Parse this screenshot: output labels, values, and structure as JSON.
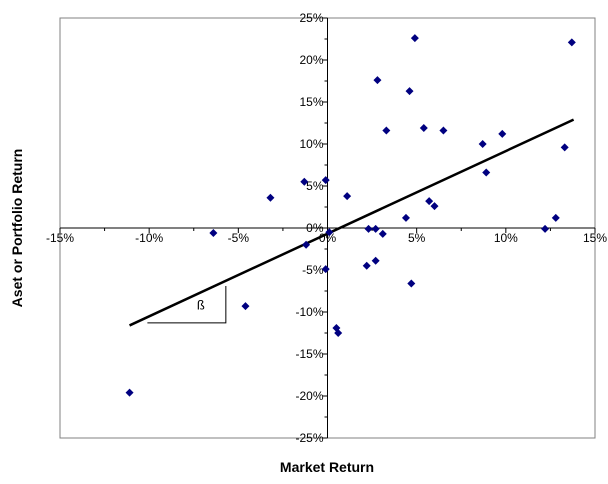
{
  "chart_data": {
    "type": "scatter",
    "xlabel": "Market Return",
    "ylabel": "Aset or Portfolio Return",
    "xlim": [
      -0.15,
      0.15
    ],
    "ylim": [
      -0.25,
      0.25
    ],
    "x_ticks": [
      "-15%",
      "-10%",
      "-5%",
      "0%",
      "5%",
      "10%",
      "15%"
    ],
    "x_tick_values": [
      -0.15,
      -0.1,
      -0.05,
      0,
      0.05,
      0.1,
      0.15
    ],
    "y_ticks": [
      "25%",
      "20%",
      "15%",
      "10%",
      "5%",
      "0%",
      "-5%",
      "-10%",
      "-15%",
      "-20%",
      "-25%"
    ],
    "y_tick_values": [
      0.25,
      0.2,
      0.15,
      0.1,
      0.05,
      0,
      -0.05,
      -0.1,
      -0.15,
      -0.2,
      -0.25
    ],
    "grid": false,
    "marker_color": "#000080",
    "line_color": "#000000",
    "points": [
      {
        "x": 0.049,
        "y": 0.226
      },
      {
        "x": 0.137,
        "y": 0.221
      },
      {
        "x": 0.028,
        "y": 0.176
      },
      {
        "x": 0.046,
        "y": 0.163
      },
      {
        "x": 0.033,
        "y": 0.116
      },
      {
        "x": 0.054,
        "y": 0.119
      },
      {
        "x": 0.065,
        "y": 0.116
      },
      {
        "x": 0.098,
        "y": 0.112
      },
      {
        "x": 0.087,
        "y": 0.1
      },
      {
        "x": 0.133,
        "y": 0.096
      },
      {
        "x": 0.089,
        "y": 0.066
      },
      {
        "x": -0.001,
        "y": 0.057
      },
      {
        "x": -0.013,
        "y": 0.055
      },
      {
        "x": 0.011,
        "y": 0.038
      },
      {
        "x": -0.032,
        "y": 0.036
      },
      {
        "x": 0.057,
        "y": 0.032
      },
      {
        "x": 0.06,
        "y": 0.026
      },
      {
        "x": 0.044,
        "y": 0.012
      },
      {
        "x": 0.128,
        "y": 0.012
      },
      {
        "x": 0.023,
        "y": -0.001
      },
      {
        "x": 0.027,
        "y": -0.001
      },
      {
        "x": 0.122,
        "y": -0.001
      },
      {
        "x": 0.001,
        "y": -0.005
      },
      {
        "x": -0.064,
        "y": -0.006
      },
      {
        "x": 0.031,
        "y": -0.007
      },
      {
        "x": -0.012,
        "y": -0.02
      },
      {
        "x": 0.027,
        "y": -0.039
      },
      {
        "x": 0.022,
        "y": -0.045
      },
      {
        "x": -0.001,
        "y": -0.049
      },
      {
        "x": 0.047,
        "y": -0.066
      },
      {
        "x": -0.046,
        "y": -0.093
      },
      {
        "x": 0.005,
        "y": -0.119
      },
      {
        "x": 0.006,
        "y": -0.125
      },
      {
        "x": -0.111,
        "y": -0.196
      }
    ],
    "regression_line": {
      "x": [
        -0.111,
        0.138
      ],
      "y": [
        -0.116,
        0.129
      ]
    },
    "beta_triangle": {
      "label": "ß",
      "corners": [
        [
          -0.101,
          -0.113
        ],
        [
          -0.057,
          -0.113
        ],
        [
          -0.057,
          -0.069
        ]
      ]
    }
  }
}
